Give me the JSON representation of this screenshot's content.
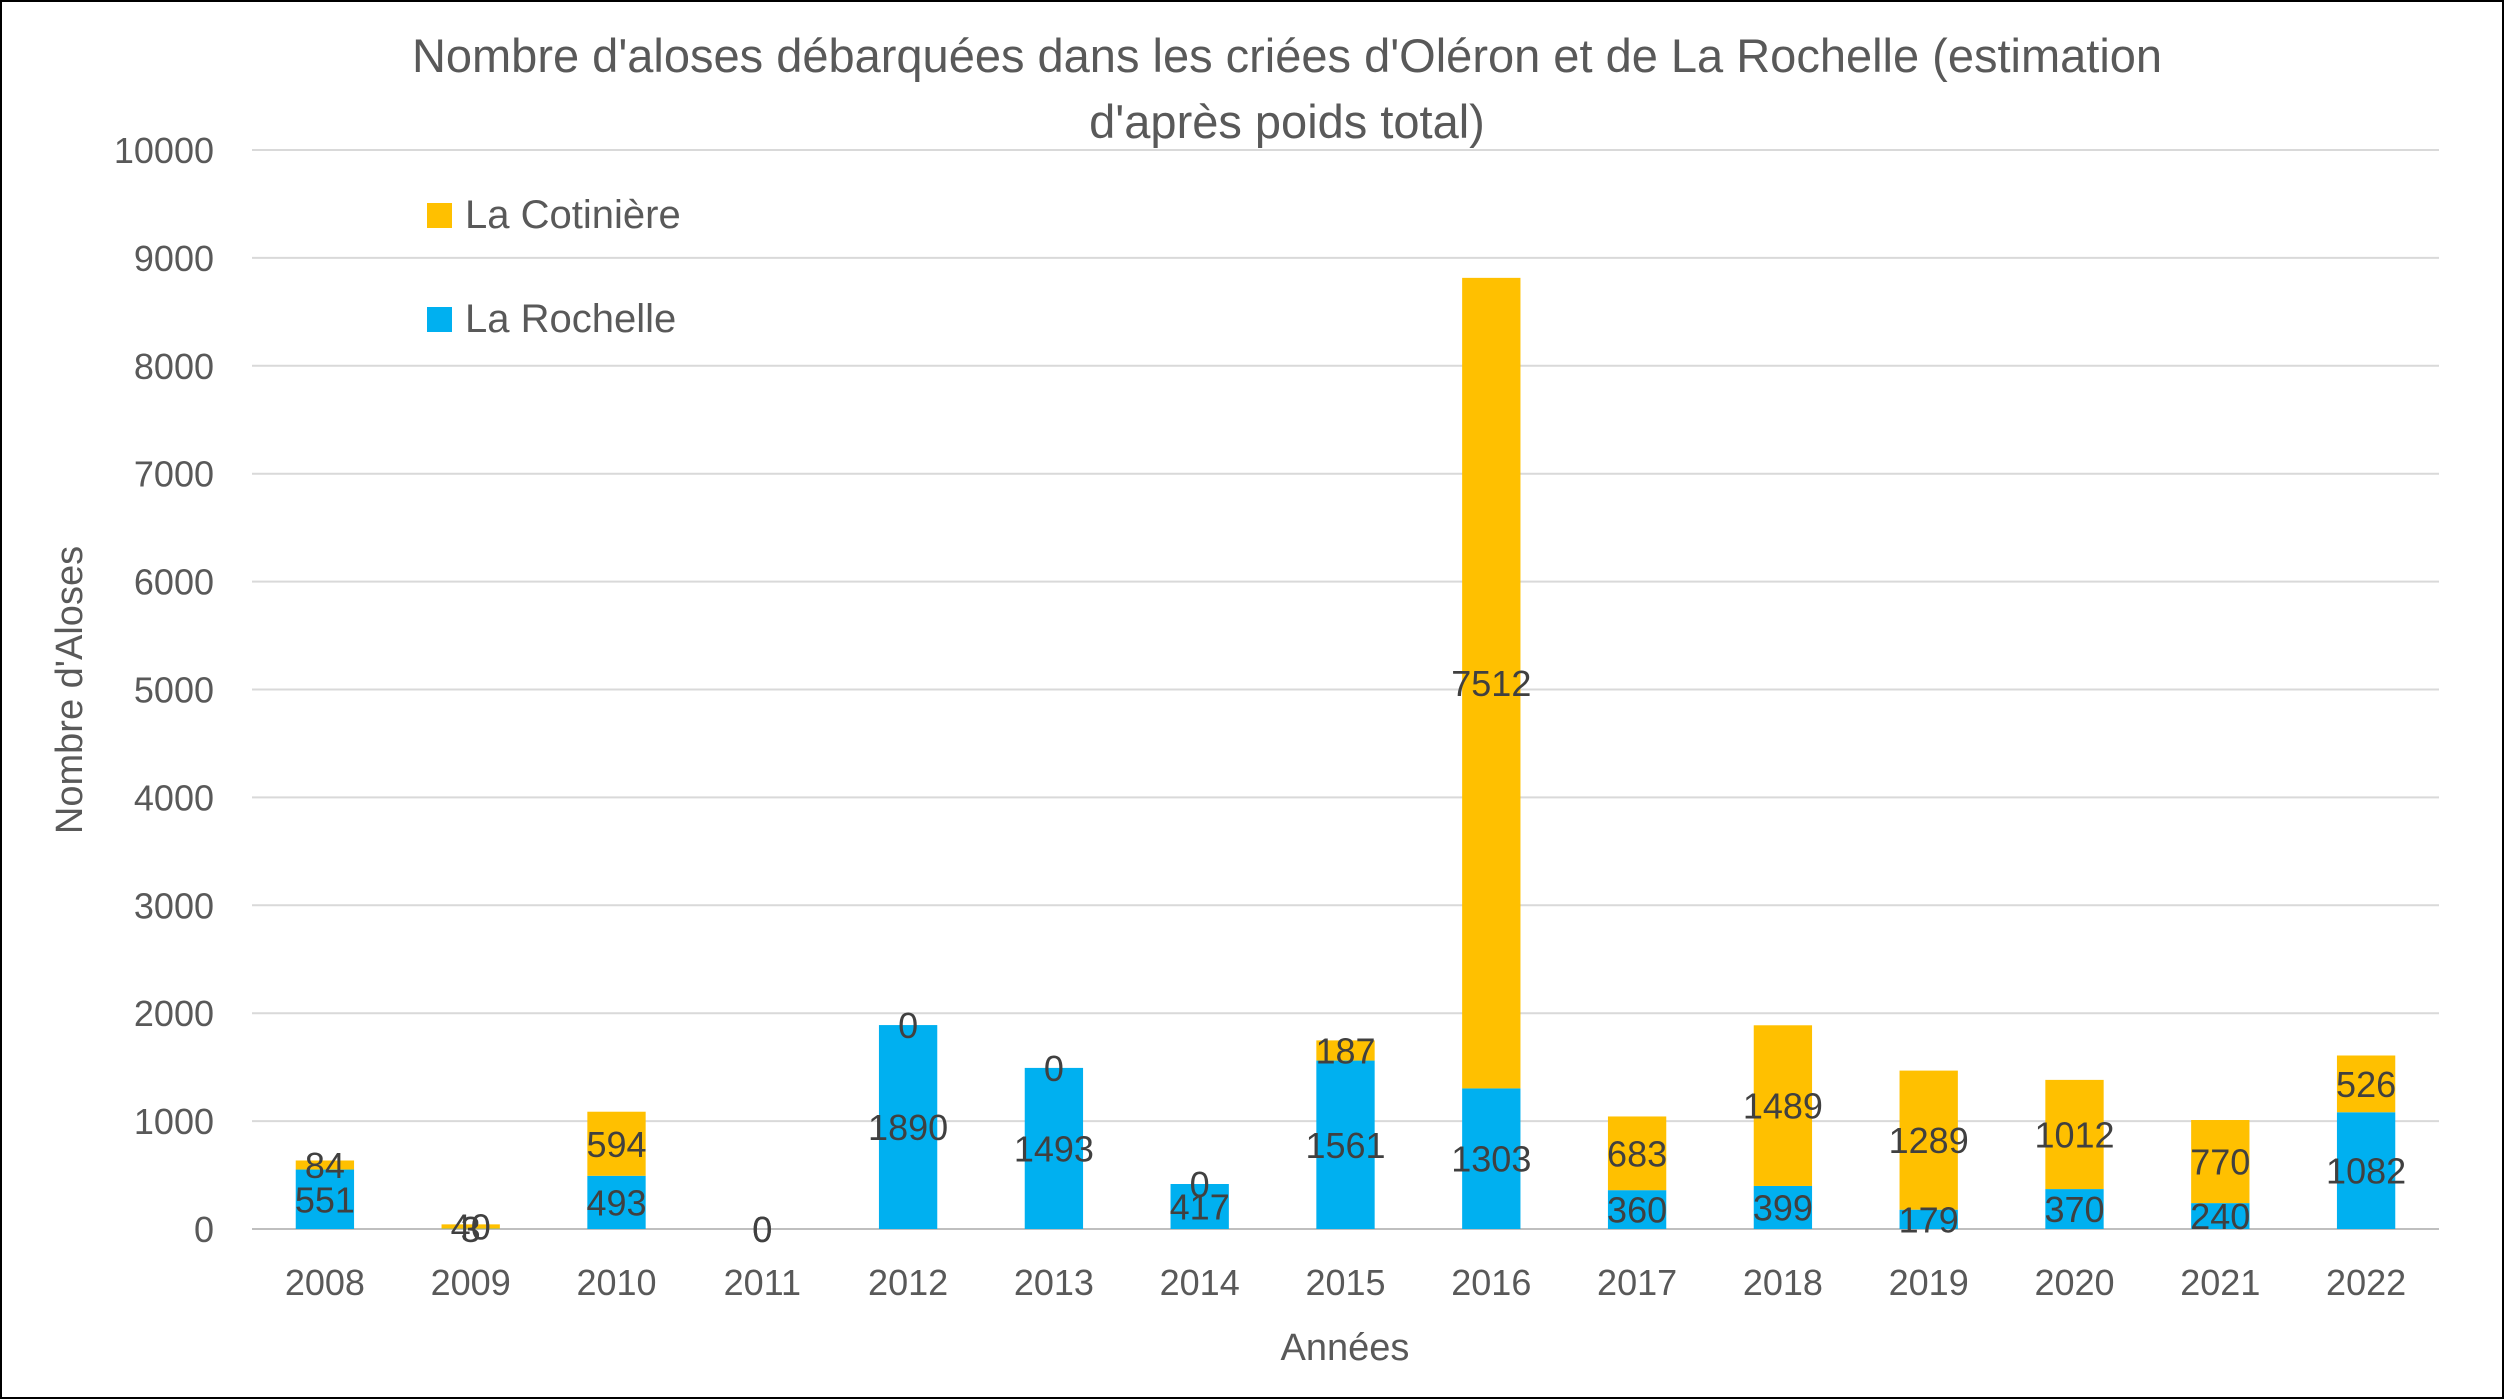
{
  "chart_data": {
    "type": "bar",
    "stacked": true,
    "title": "Nombre d'aloses débarquées dans les criées d'Oléron et de La Rochelle (estimation d'après poids total)",
    "title_lines": [
      "Nombre d'aloses débarquées dans les criées d'Oléron et de La Rochelle (estimation",
      "d'après poids total)"
    ],
    "xlabel": "Années",
    "ylabel": "Nombre d'Aloses",
    "ylim": [
      0,
      10000
    ],
    "yticks": [
      0,
      1000,
      2000,
      3000,
      4000,
      5000,
      6000,
      7000,
      8000,
      9000,
      10000
    ],
    "grid": true,
    "legend_position": "top-left",
    "categories": [
      "2008",
      "2009",
      "2010",
      "2011",
      "2012",
      "2013",
      "2014",
      "2015",
      "2016",
      "2017",
      "2018",
      "2019",
      "2020",
      "2021",
      "2022"
    ],
    "series": [
      {
        "name": "La Rochelle",
        "color": "#00b0f0",
        "values": [
          551,
          3,
          493,
          0,
          1890,
          1493,
          417,
          1561,
          1303,
          360,
          399,
          179,
          370,
          240,
          1082
        ]
      },
      {
        "name": "La Cotinière",
        "color": "#ffc000",
        "values": [
          84,
          40,
          594,
          0,
          0,
          0,
          0,
          187,
          7512,
          683,
          1489,
          1289,
          1012,
          770,
          526
        ]
      }
    ],
    "legend_order": [
      "La Cotinière",
      "La Rochelle"
    ]
  },
  "colors": {
    "text": "#595959",
    "grid": "#d9d9d9",
    "axis": "#bfbfbf",
    "label": "#404040"
  }
}
